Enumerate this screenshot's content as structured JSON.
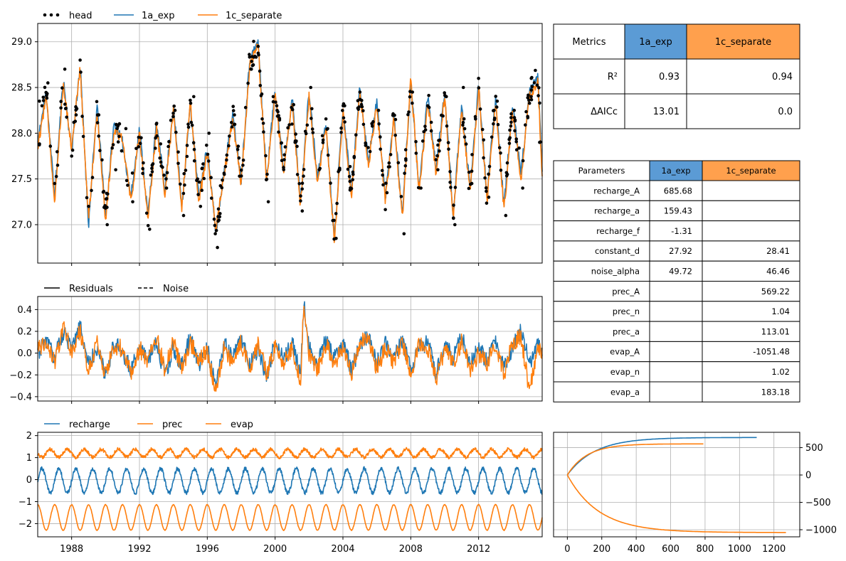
{
  "colors": {
    "blue": "#1f77b4",
    "orange": "#ff7f0e",
    "black": "#000000",
    "grid": "#b0b0b0",
    "header_blue": "#5b9bd5",
    "header_orange": "#ffa04d"
  },
  "chart_data": [
    {
      "id": "head",
      "type": "line",
      "legend": [
        "head",
        "1a_exp",
        "1c_separate"
      ],
      "legend_placement": "top-left, above axes",
      "grid": true,
      "xlim": [
        1986.0,
        2015.75
      ],
      "ylim": [
        26.58,
        29.2
      ],
      "yticks": [
        27.0,
        27.5,
        28.0,
        28.5,
        29.0
      ],
      "ytick_labels": [
        "27.0",
        "27.5",
        "28.0",
        "28.5",
        "29.0"
      ],
      "observed": {
        "name": "head",
        "style": "dots",
        "x": [
          1986.1,
          1986.6,
          1987.0,
          1987.6,
          1988.0,
          1988.5,
          1989.0,
          1989.6,
          1990.1,
          1990.6,
          1991.2,
          1991.6,
          1992.1,
          1992.6,
          1993.0,
          1993.6,
          1994.1,
          1994.6,
          1995.2,
          1995.6,
          1996.1,
          1996.6,
          1997.0,
          1997.6,
          1998.1,
          1998.6,
          1999.0,
          1999.6,
          2000.1,
          2000.6,
          2001.0,
          2001.6,
          2002.1,
          2002.6,
          2003.1,
          2003.6,
          2004.1,
          2004.6,
          2005.0,
          2005.6,
          2006.1,
          2006.6,
          2007.1,
          2007.6,
          2008.1,
          2008.6,
          2009.0,
          2009.6,
          2010.1,
          2010.6,
          2011.1,
          2011.6,
          2012.0,
          2012.6,
          2013.1,
          2013.6,
          2014.1,
          2014.6,
          2015.1,
          2015.6
        ],
        "y": [
          28.35,
          28.55,
          27.45,
          28.7,
          27.75,
          28.8,
          27.2,
          28.2,
          27.0,
          27.6,
          28.05,
          27.25,
          27.95,
          26.95,
          28.1,
          27.4,
          28.25,
          27.1,
          28.4,
          27.2,
          28.0,
          26.75,
          27.55,
          28.2,
          27.65,
          28.7,
          28.95,
          27.25,
          28.3,
          27.85,
          28.1,
          27.15,
          28.5,
          27.6,
          28.05,
          26.85,
          28.3,
          27.55,
          28.45,
          27.8,
          28.25,
          27.35,
          28.15,
          26.9,
          28.45,
          27.4,
          28.3,
          27.6,
          28.4,
          27.0,
          28.5,
          27.45,
          28.6,
          27.3,
          28.35,
          27.1,
          28.25,
          27.4,
          28.4,
          27.9
        ]
      },
      "series": [
        {
          "name": "1a_exp",
          "color": "#1f77b4",
          "x": [
            1986.0,
            1986.5,
            1987.0,
            1987.5,
            1988.0,
            1988.5,
            1989.0,
            1989.5,
            1990.0,
            1990.5,
            1991.0,
            1991.5,
            1992.0,
            1992.5,
            1993.0,
            1993.5,
            1994.0,
            1994.5,
            1995.0,
            1995.5,
            1996.0,
            1996.5,
            1997.0,
            1997.5,
            1998.0,
            1998.5,
            1999.0,
            1999.5,
            2000.0,
            2000.5,
            2001.0,
            2001.5,
            2002.0,
            2002.5,
            2003.0,
            2003.5,
            2004.0,
            2004.5,
            2005.0,
            2005.5,
            2006.0,
            2006.5,
            2007.0,
            2007.5,
            2008.0,
            2008.5,
            2009.0,
            2009.5,
            2010.0,
            2010.5,
            2011.0,
            2011.5,
            2012.0,
            2012.5,
            2013.0,
            2013.5,
            2014.0,
            2014.5,
            2015.0,
            2015.5,
            2015.75
          ],
          "y": [
            27.9,
            28.45,
            27.3,
            28.6,
            27.8,
            28.75,
            27.0,
            28.3,
            27.1,
            28.1,
            27.9,
            27.3,
            28.05,
            27.1,
            28.1,
            27.4,
            28.3,
            27.2,
            28.3,
            27.3,
            27.85,
            26.9,
            27.6,
            28.2,
            27.5,
            28.8,
            29.0,
            27.5,
            28.5,
            27.6,
            28.4,
            27.25,
            28.45,
            27.5,
            28.1,
            26.85,
            28.3,
            27.35,
            28.5,
            27.7,
            28.35,
            27.3,
            28.2,
            27.1,
            28.55,
            27.4,
            28.4,
            27.6,
            28.45,
            27.1,
            28.3,
            27.4,
            28.55,
            27.3,
            28.4,
            27.2,
            28.3,
            27.55,
            28.45,
            28.6,
            27.6
          ]
        },
        {
          "name": "1c_separate",
          "color": "#ff7f0e",
          "x": [
            1986.0,
            1986.5,
            1987.0,
            1987.5,
            1988.0,
            1988.5,
            1989.0,
            1989.5,
            1990.0,
            1990.5,
            1991.0,
            1991.5,
            1992.0,
            1992.5,
            1993.0,
            1993.5,
            1994.0,
            1994.5,
            1995.0,
            1995.5,
            1996.0,
            1996.5,
            1997.0,
            1997.5,
            1998.0,
            1998.5,
            1999.0,
            1999.5,
            2000.0,
            2000.5,
            2001.0,
            2001.5,
            2002.0,
            2002.5,
            2003.0,
            2003.5,
            2004.0,
            2004.5,
            2005.0,
            2005.5,
            2006.0,
            2006.5,
            2007.0,
            2007.5,
            2008.0,
            2008.5,
            2009.0,
            2009.5,
            2010.0,
            2010.5,
            2011.0,
            2011.5,
            2012.0,
            2012.5,
            2013.0,
            2013.5,
            2014.0,
            2014.5,
            2015.0,
            2015.5,
            2015.75
          ],
          "y": [
            27.85,
            28.4,
            27.25,
            28.55,
            27.85,
            28.7,
            27.05,
            28.25,
            27.05,
            28.05,
            27.95,
            27.25,
            28.0,
            27.05,
            28.05,
            27.35,
            28.25,
            27.15,
            28.35,
            27.25,
            27.8,
            26.95,
            27.55,
            28.15,
            27.45,
            28.75,
            28.95,
            27.45,
            28.45,
            27.55,
            28.35,
            27.2,
            28.4,
            27.45,
            28.05,
            26.8,
            28.25,
            27.3,
            28.45,
            27.65,
            28.3,
            27.25,
            28.15,
            27.05,
            28.6,
            27.35,
            28.35,
            27.55,
            28.4,
            27.05,
            28.25,
            27.35,
            28.5,
            27.25,
            28.35,
            27.15,
            28.25,
            27.5,
            28.4,
            28.55,
            27.55
          ]
        }
      ]
    },
    {
      "id": "residuals",
      "type": "line",
      "legend": [
        "Residuals",
        "Noise"
      ],
      "legend_placement": "top-left, above axes",
      "grid": true,
      "xlim": [
        1986.0,
        2015.75
      ],
      "ylim": [
        -0.44,
        0.52
      ],
      "yticks": [
        -0.4,
        -0.2,
        0.0,
        0.2,
        0.4
      ],
      "ytick_labels": [
        "−0.4",
        "−0.2",
        "0.0",
        "0.2",
        "0.4"
      ],
      "series": [
        {
          "name": "1a_exp",
          "color": "#1f77b4",
          "x": [
            1986.0,
            1986.5,
            1987.0,
            1987.5,
            1988.0,
            1988.5,
            1989.0,
            1989.5,
            1990.0,
            1990.5,
            1991.0,
            1991.5,
            1992.0,
            1992.5,
            1993.0,
            1993.5,
            1994.0,
            1994.5,
            1995.0,
            1995.5,
            1996.0,
            1996.5,
            1997.0,
            1997.5,
            1998.0,
            1998.5,
            1999.0,
            1999.5,
            2000.0,
            2000.5,
            2001.0,
            2001.5,
            2001.7,
            2002.0,
            2002.5,
            2003.0,
            2003.5,
            2004.0,
            2004.5,
            2005.0,
            2005.5,
            2006.0,
            2006.5,
            2007.0,
            2007.5,
            2008.0,
            2008.5,
            2009.0,
            2009.5,
            2010.0,
            2010.5,
            2011.0,
            2011.5,
            2012.0,
            2012.5,
            2013.0,
            2013.5,
            2014.0,
            2014.5,
            2015.0,
            2015.5,
            2015.75
          ],
          "y": [
            0.0,
            0.12,
            -0.05,
            0.2,
            0.02,
            0.25,
            -0.1,
            0.05,
            -0.2,
            0.1,
            0.0,
            -0.15,
            0.08,
            -0.05,
            0.1,
            -0.2,
            0.05,
            -0.12,
            0.15,
            -0.1,
            0.05,
            -0.3,
            0.1,
            -0.05,
            0.15,
            -0.1,
            0.05,
            -0.25,
            0.12,
            -0.05,
            0.1,
            -0.2,
            0.45,
            0.05,
            -0.1,
            0.12,
            -0.05,
            0.1,
            -0.15,
            0.05,
            0.18,
            -0.1,
            0.08,
            -0.05,
            0.12,
            -0.15,
            0.05,
            0.1,
            -0.2,
            0.08,
            -0.05,
            0.15,
            -0.1,
            0.05,
            -0.08,
            0.12,
            -0.15,
            0.05,
            0.2,
            -0.1,
            0.1,
            0.0
          ]
        },
        {
          "name": "1c_separate",
          "color": "#ff7f0e",
          "x": [
            1986.0,
            1986.5,
            1987.0,
            1987.5,
            1988.0,
            1988.5,
            1989.0,
            1989.5,
            1990.0,
            1990.5,
            1991.0,
            1991.5,
            1992.0,
            1992.5,
            1993.0,
            1993.5,
            1994.0,
            1994.5,
            1995.0,
            1995.5,
            1996.0,
            1996.5,
            1997.0,
            1997.5,
            1998.0,
            1998.5,
            1999.0,
            1999.5,
            2000.0,
            2000.5,
            2001.0,
            2001.5,
            2001.7,
            2002.0,
            2002.5,
            2003.0,
            2003.5,
            2004.0,
            2004.5,
            2005.0,
            2005.5,
            2006.0,
            2006.5,
            2007.0,
            2007.5,
            2008.0,
            2008.5,
            2009.0,
            2009.5,
            2010.0,
            2010.5,
            2011.0,
            2011.5,
            2012.0,
            2012.5,
            2013.0,
            2013.5,
            2014.0,
            2014.5,
            2015.0,
            2015.5,
            2015.75
          ],
          "y": [
            0.05,
            0.1,
            -0.1,
            0.25,
            0.0,
            0.2,
            -0.15,
            0.1,
            -0.2,
            0.05,
            0.05,
            -0.2,
            0.05,
            -0.1,
            0.15,
            -0.15,
            0.1,
            -0.15,
            0.1,
            -0.05,
            0.0,
            -0.35,
            0.05,
            -0.1,
            0.1,
            -0.15,
            0.1,
            -0.2,
            0.05,
            -0.1,
            0.05,
            -0.25,
            0.48,
            0.0,
            -0.15,
            0.08,
            -0.1,
            0.05,
            -0.2,
            0.1,
            0.15,
            -0.15,
            0.05,
            -0.1,
            0.1,
            -0.2,
            0.1,
            0.05,
            -0.25,
            0.05,
            -0.1,
            0.1,
            -0.15,
            0.0,
            -0.1,
            0.1,
            -0.2,
            0.1,
            0.15,
            -0.35,
            0.05,
            0.0
          ]
        }
      ]
    },
    {
      "id": "stresses",
      "type": "line",
      "legend": [
        "recharge",
        "prec",
        "evap"
      ],
      "legend_placement": "top-left, above axes",
      "grid": true,
      "xlim": [
        1986.0,
        2015.75
      ],
      "ylim": [
        -2.6,
        2.15
      ],
      "yticks": [
        -2,
        -1,
        0,
        1,
        2
      ],
      "ytick_labels": [
        "−2",
        "−1",
        "0",
        "1",
        "2"
      ],
      "xticks": [
        1988,
        1992,
        1996,
        2000,
        2004,
        2008,
        2012
      ],
      "xtick_labels": [
        "1988",
        "1992",
        "1996",
        "2000",
        "2004",
        "2008",
        "2012"
      ],
      "series": [
        {
          "name": "recharge",
          "color": "#1f77b4",
          "center": -0.05,
          "amplitude": 0.55,
          "period": 1.0,
          "phase": 0.0,
          "x_range": [
            1986.0,
            2015.75
          ]
        },
        {
          "name": "prec",
          "color": "#ff7f0e",
          "center": 1.2,
          "amplitude": 0.18,
          "period": 1.0,
          "phase": 0.5,
          "x_range": [
            1986.0,
            2015.75
          ]
        },
        {
          "name": "evap",
          "color": "#ff7f0e",
          "center": -1.72,
          "amplitude": 0.58,
          "period": 1.0,
          "phase": 0.25,
          "x_range": [
            1986.0,
            2015.75
          ]
        }
      ]
    },
    {
      "id": "step_response",
      "type": "line",
      "grid": true,
      "xlim": [
        -80,
        1350
      ],
      "ylim": [
        -1130,
        780
      ],
      "xticks": [
        0,
        200,
        400,
        600,
        800,
        1000,
        1200
      ],
      "xtick_labels": [
        "0",
        "200",
        "400",
        "600",
        "800",
        "1000",
        "1200"
      ],
      "yticks": [
        -1000,
        -500,
        0,
        500
      ],
      "ytick_labels": [
        "−1000",
        "−500",
        "0",
        "500"
      ],
      "y_axis_side": "right",
      "series": [
        {
          "name": "1a_exp",
          "color": "#1f77b4",
          "gain": 685.68,
          "scale": 159.43,
          "x_max": 1100
        },
        {
          "name": "prec",
          "color": "#ff7f0e",
          "gain": 569.22,
          "scale": 113.01,
          "x_max": 790
        },
        {
          "name": "evap",
          "color": "#ff7f0e",
          "gain": -1051.48,
          "scale": 183.18,
          "x_max": 1270
        }
      ]
    }
  ],
  "metrics_table": {
    "header": [
      "Metrics",
      "1a_exp",
      "1c_separate"
    ],
    "rows": [
      [
        "R²",
        "0.93",
        "0.94"
      ],
      [
        "ΔAICc",
        "13.01",
        "0.0"
      ]
    ]
  },
  "parameters_table": {
    "header": [
      "Parameters",
      "1a_exp",
      "1c_separate"
    ],
    "rows": [
      [
        "recharge_A",
        "685.68",
        ""
      ],
      [
        "recharge_a",
        "159.43",
        ""
      ],
      [
        "recharge_f",
        "-1.31",
        ""
      ],
      [
        "constant_d",
        "27.92",
        "28.41"
      ],
      [
        "noise_alpha",
        "49.72",
        "46.46"
      ],
      [
        "prec_A",
        "",
        "569.22"
      ],
      [
        "prec_n",
        "",
        "1.04"
      ],
      [
        "prec_a",
        "",
        "113.01"
      ],
      [
        "evap_A",
        "",
        "-1051.48"
      ],
      [
        "evap_n",
        "",
        "1.02"
      ],
      [
        "evap_a",
        "",
        "183.18"
      ]
    ]
  }
}
